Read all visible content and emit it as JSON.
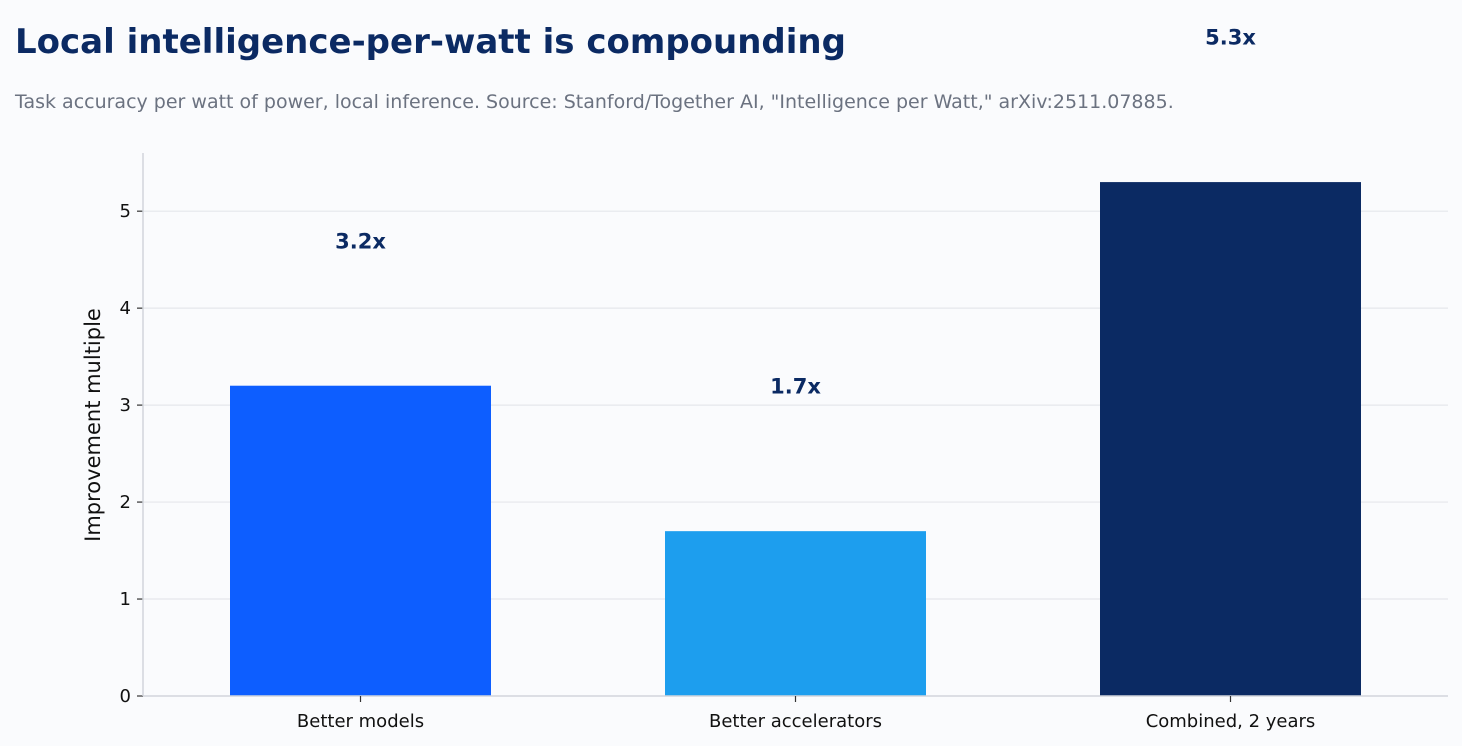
{
  "header": {
    "title": "Local intelligence-per-watt is compounding",
    "subtitle": "Task accuracy per watt of power, local inference. Source: Stanford/Together AI, \"Intelligence per Watt,\" arXiv:2511.07885."
  },
  "colors": {
    "background": "#fafbfd",
    "title": "#0b2a63",
    "subtitle": "#6b7280",
    "grid": "#e5e7eb",
    "axis": "#d1d5db",
    "label": "#0b2a63"
  },
  "chart_data": {
    "type": "bar",
    "title": "Local intelligence-per-watt is compounding",
    "xlabel": "",
    "ylabel": "Improvement multiple",
    "categories": [
      "Better models",
      "Better accelerators",
      "Combined, 2 years"
    ],
    "values": [
      3.2,
      1.7,
      5.3
    ],
    "data_labels": [
      "3.2x",
      "1.7x",
      "5.3x"
    ],
    "bar_colors": [
      "#0d5eff",
      "#1d9eee",
      "#0b2a63"
    ],
    "ylim": [
      0,
      5.6
    ],
    "yticks": [
      0,
      1,
      2,
      3,
      4,
      5
    ],
    "grid": true,
    "legend": "none"
  }
}
